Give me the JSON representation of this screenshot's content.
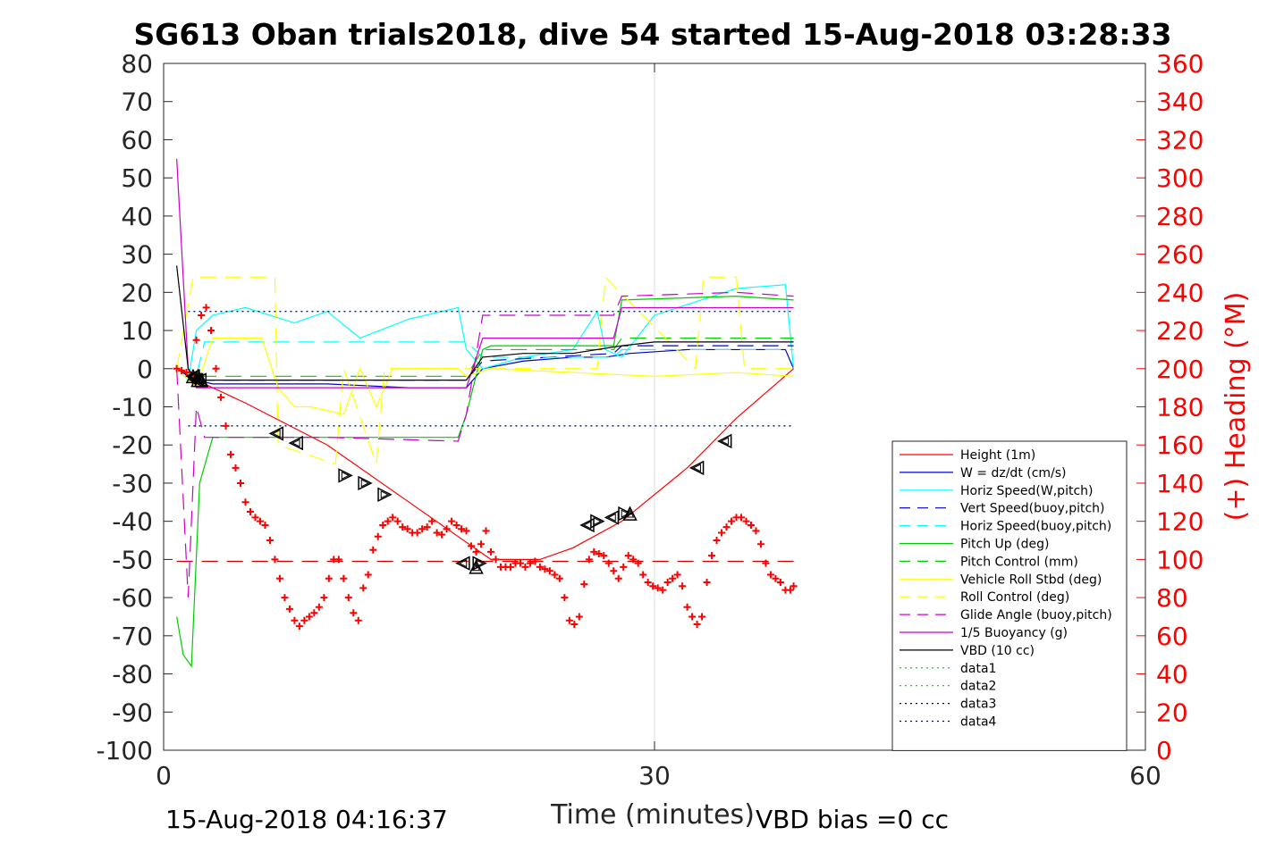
{
  "chart_data": {
    "type": "line",
    "title": "SG613 Oban trials2018, dive 54 started 15-Aug-2018 03:28:33",
    "xlabel": "Time (minutes)",
    "ylabel_right": "(+) Heading (°M)",
    "xlim": [
      0,
      60
    ],
    "ylim_left": [
      -100,
      80
    ],
    "ylim_right": [
      0,
      360
    ],
    "x_ticks": [
      "0",
      "30",
      "60"
    ],
    "y_ticks_left": [
      "80",
      "70",
      "60",
      "50",
      "40",
      "30",
      "20",
      "10",
      "0",
      "-10",
      "-20",
      "-30",
      "-40",
      "-50",
      "-60",
      "-70",
      "-80",
      "-90",
      "-100"
    ],
    "y_ticks_right": [
      "360",
      "340",
      "320",
      "300",
      "280",
      "260",
      "240",
      "220",
      "200",
      "180",
      "160",
      "140",
      "120",
      "100",
      "80",
      "60",
      "40",
      "20",
      "0"
    ],
    "grid": "x-only at 30",
    "legend_position": "lower-right",
    "footer_left": "15-Aug-2018 04:16:37",
    "footer_right": "VBD bias =0 cc",
    "colors": {
      "right_axis": "#ff0000",
      "heading": "#ff0000"
    },
    "series": [
      {
        "name": "Height (1m)",
        "color": "#ff0000",
        "style": "solid",
        "x": [
          0.8,
          2,
          5,
          10,
          15,
          20,
          23,
          25,
          28,
          32,
          35,
          38.5
        ],
        "y": [
          0,
          -3,
          -9,
          -20,
          -35,
          -50,
          -50,
          -47,
          -40,
          -26,
          -13,
          0
        ]
      },
      {
        "name": "W = dz/dt (cm/s)",
        "color": "#0000cc",
        "style": "solid",
        "x": [
          0.8,
          1.5,
          2,
          3,
          6,
          10,
          15,
          18.5,
          19.5,
          22,
          25,
          27,
          28.5,
          32,
          35,
          38,
          38.5
        ],
        "y": [
          0,
          -2,
          -3,
          -4,
          -4,
          -4,
          -5,
          -5,
          0,
          2,
          3,
          3,
          4,
          5,
          5,
          5,
          0
        ]
      },
      {
        "name": "Horiz Speed(W,pitch)",
        "color": "#00ffff",
        "style": "solid",
        "x": [
          0.8,
          1.5,
          2,
          3,
          5,
          8,
          10,
          12,
          15,
          18,
          18.5,
          19.5,
          22,
          25,
          26.5,
          27,
          28,
          30,
          35,
          38,
          38.5
        ],
        "y": [
          0,
          -3,
          10,
          14,
          16,
          12,
          15,
          8,
          13,
          16,
          5,
          0,
          3,
          5,
          15,
          5,
          3,
          14,
          21,
          22,
          0
        ]
      },
      {
        "name": "Vert Speed(buoy,pitch)",
        "color": "#0000cc",
        "style": "dash",
        "x": [
          0.8,
          2,
          2.5,
          18.5,
          19.5,
          27.5,
          28,
          38.5
        ],
        "y": [
          0,
          -3,
          -3,
          -3,
          2,
          4,
          6,
          6
        ]
      },
      {
        "name": "Horiz Speed(buoy,pitch)",
        "color": "#00ffff",
        "style": "dash",
        "x": [
          0.8,
          2,
          2.5,
          18.5,
          19.5,
          27.5,
          28,
          38.5
        ],
        "y": [
          0,
          -2,
          7,
          7,
          3,
          3,
          5,
          5
        ]
      },
      {
        "name": "Pitch Up (deg)",
        "color": "#00cc00",
        "style": "solid",
        "x": [
          0.8,
          1.2,
          1.7,
          2.2,
          3,
          10,
          18,
          18.5,
          19.5,
          20,
          27.5,
          28,
          35,
          38.5
        ],
        "y": [
          -65,
          -75,
          -78,
          -30,
          -18,
          -18,
          -18,
          -12,
          5,
          6,
          6,
          18,
          19,
          18
        ]
      },
      {
        "name": "Pitch Control (mm)",
        "color": "#00cc00",
        "style": "dash",
        "x": [
          0.8,
          2,
          2.5,
          18.5,
          19.5,
          27.5,
          28,
          38.5
        ],
        "y": [
          0,
          -2,
          -2,
          -2,
          5,
          5,
          8,
          8
        ]
      },
      {
        "name": "Vehicle Roll Stbd (deg)",
        "color": "#ffff00",
        "style": "solid",
        "x": [
          0.8,
          2,
          3,
          6,
          7,
          8,
          9,
          11,
          12,
          13,
          14,
          15,
          18,
          18.5,
          20,
          25,
          30,
          35,
          38.5
        ],
        "y": [
          0,
          -5,
          8,
          8,
          -5,
          -10,
          -10,
          -12,
          0,
          -10,
          0,
          0,
          0,
          -2,
          0,
          -1,
          -2,
          -1,
          -2
        ]
      },
      {
        "name": "Roll Control (deg)",
        "color": "#ffff00",
        "style": "dash",
        "x": [
          0.8,
          1.8,
          2,
          6.8,
          7,
          10.5,
          11,
          13,
          13.5,
          26.5,
          27,
          32.5,
          33,
          35,
          35.5,
          38.5
        ],
        "y": [
          0,
          24,
          24,
          24,
          -20,
          -25,
          0,
          -25,
          0,
          0,
          24,
          0,
          24,
          24,
          0,
          0
        ]
      },
      {
        "name": "Glide Angle (buoy,pitch)",
        "color": "#cc00cc",
        "style": "dash",
        "x": [
          0.8,
          1.5,
          2,
          2.5,
          3,
          10,
          18,
          18.5,
          19.5,
          27.5,
          28,
          35,
          38.5
        ],
        "y": [
          0,
          -60,
          -10,
          -18,
          -18,
          -18,
          -19,
          -12,
          14,
          14,
          19,
          20,
          19
        ]
      },
      {
        "name": "1/5 Buoyancy (g)",
        "color": "#cc00cc",
        "style": "solid",
        "x": [
          0.8,
          1.5,
          2,
          2.5,
          18.5,
          19.5,
          27.5,
          28,
          38.5
        ],
        "y": [
          55,
          0,
          -5,
          -5,
          -5,
          8,
          8,
          16,
          16
        ]
      },
      {
        "name": "VBD (10 cc)",
        "color": "#000000",
        "style": "solid",
        "x": [
          0.8,
          1.5,
          2,
          2.5,
          18.5,
          19.5,
          22,
          25,
          28,
          30,
          35,
          38.5
        ],
        "y": [
          27,
          0,
          -3,
          -3,
          -3,
          3,
          4,
          4,
          6,
          7,
          7,
          7
        ]
      },
      {
        "name": "data1",
        "color": "#00cc00",
        "style": "dot",
        "x": [
          1.5,
          38.5
        ],
        "y": [
          -15,
          -15
        ]
      },
      {
        "name": "data2",
        "color": "#00cc00",
        "style": "dot",
        "x": [
          1.5,
          38.5
        ],
        "y": [
          15,
          15
        ]
      },
      {
        "name": "data3",
        "color": "#000080",
        "style": "dot",
        "x": [
          1.5,
          38.5
        ],
        "y": [
          -15,
          -15
        ]
      },
      {
        "name": "data4",
        "color": "#000080",
        "style": "dot",
        "x": [
          1.5,
          38.5
        ],
        "y": [
          15,
          15
        ]
      }
    ],
    "reference_lines": [
      {
        "color": "#cc0000",
        "style": "dash",
        "x": [
          0.8,
          38.5
        ],
        "y": [
          -50.5,
          -50.5
        ]
      }
    ],
    "heading": {
      "axis": "right",
      "color": "#ff0000",
      "marker": "+",
      "x": [
        0.8,
        1.1,
        1.4,
        1.7,
        2.0,
        2.3,
        2.6,
        2.9,
        3.2,
        3.5,
        3.8,
        4.1,
        4.4,
        4.7,
        5.0,
        5.3,
        5.6,
        5.9,
        6.2,
        6.5,
        6.8,
        7.1,
        7.4,
        7.7,
        8.0,
        8.3,
        8.6,
        8.9,
        9.2,
        9.5,
        9.8,
        10.1,
        10.4,
        10.7,
        11.0,
        11.3,
        11.6,
        11.9,
        12.2,
        12.5,
        12.8,
        13.1,
        13.4,
        13.7,
        14.0,
        14.3,
        14.6,
        14.9,
        15.2,
        15.5,
        15.8,
        16.1,
        16.4,
        16.7,
        17.0,
        17.3,
        17.6,
        17.9,
        18.2,
        18.5,
        18.8,
        19.1,
        19.4,
        19.7,
        20.0,
        20.3,
        20.6,
        20.9,
        21.2,
        21.5,
        21.8,
        22.1,
        22.4,
        22.7,
        23.0,
        23.3,
        23.6,
        23.9,
        24.2,
        24.5,
        24.8,
        25.1,
        25.4,
        25.7,
        26.0,
        26.3,
        26.6,
        26.9,
        27.2,
        27.5,
        27.8,
        28.1,
        28.4,
        28.7,
        29.0,
        29.3,
        29.6,
        29.9,
        30.2,
        30.5,
        30.8,
        31.1,
        31.4,
        31.7,
        32.0,
        32.3,
        32.6,
        32.9,
        33.2,
        33.5,
        33.8,
        34.1,
        34.4,
        34.7,
        35.0,
        35.3,
        35.6,
        35.9,
        36.2,
        36.5,
        36.8,
        37.1,
        37.4,
        37.7,
        38.0,
        38.3,
        38.5
      ],
      "y": [
        200,
        199,
        198,
        196,
        215,
        228,
        232,
        220,
        200,
        185,
        170,
        155,
        148,
        140,
        130,
        125,
        122,
        120,
        118,
        110,
        100,
        90,
        80,
        74,
        68,
        65,
        68,
        70,
        72,
        75,
        80,
        90,
        100,
        100,
        90,
        80,
        72,
        68,
        85,
        92,
        105,
        112,
        118,
        120,
        122,
        120,
        117,
        116,
        114,
        114,
        116,
        117,
        120,
        114,
        113,
        116,
        120,
        118,
        116,
        115,
        107,
        104,
        108,
        115,
        104,
        100,
        96,
        96,
        96,
        98,
        98,
        96,
        98,
        99,
        96,
        95,
        94,
        92,
        90,
        80,
        68,
        66,
        70,
        87,
        100,
        104,
        103,
        102,
        98,
        94,
        90,
        96,
        102,
        100,
        98,
        92,
        88,
        86,
        85,
        84,
        88,
        90,
        92,
        86,
        75,
        70,
        66,
        70,
        88,
        102,
        110,
        114,
        117,
        120,
        122,
        122,
        120,
        118,
        115,
        108,
        98,
        92,
        90,
        88,
        84,
        84,
        86
      ]
    },
    "markers": {
      "color": "#000000",
      "types": [
        "triangle-right",
        "triangle-left",
        "triangle-up"
      ],
      "triangle_right": {
        "x": [
          11.1,
          12.3,
          13.5,
          19.3,
          26.5,
          28.2
        ],
        "y": [
          -28,
          -30,
          -33,
          -51,
          -40,
          -38
        ]
      },
      "triangle_left": {
        "x": [
          1.8,
          2.0,
          2.2,
          6.9,
          8.1,
          18.3,
          25.9,
          27.4,
          32.6,
          34.3
        ],
        "y": [
          -2,
          -3,
          -3,
          -17,
          -19.5,
          -51,
          -41,
          -39,
          -26,
          -19
        ]
      },
      "triangle_up": {
        "x": [
          1.8,
          2.1,
          2.3,
          2.1,
          19.1,
          28.5
        ],
        "y": [
          -2,
          -3,
          -3,
          -2,
          -52,
          -38
        ]
      }
    }
  }
}
